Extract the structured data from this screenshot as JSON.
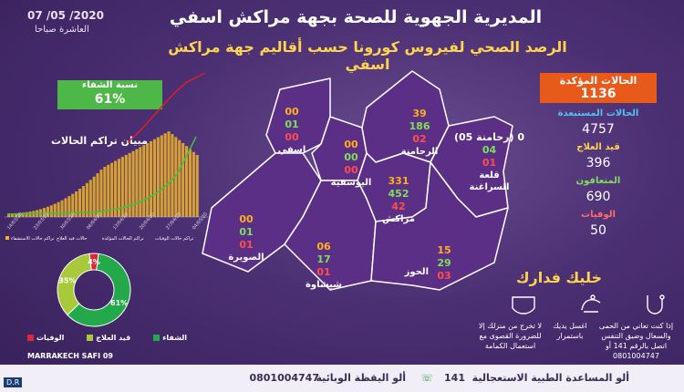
{
  "header": {
    "date": "07 /05 /2020",
    "time": "العاشرة صباحا",
    "title": "المديرية الجهوية للصحة بجهة مراكش اسفي",
    "subtitle": "الرصد الصحي لفيروس كورونا حسب أقاليم جهة مراكش اسفي"
  },
  "recovery": {
    "label": "نسبة الشفاء",
    "value": "61%"
  },
  "cumulative_chart": {
    "title": "مبيان تراكم الحالات",
    "x_labels": [
      "14/03/20",
      "23/03/20",
      "30/03/20",
      "06/04/20",
      "13/04/20",
      "20/04/20",
      "27/04/20",
      "04/05/20"
    ],
    "legend": [
      "تراكم حالات الاستشفاء",
      "حالات قيد العلاج",
      "تراكم الحالات المؤكدة",
      "تراكم حالات الوفيات"
    ],
    "colors": {
      "bars": "#f0b428",
      "line_red": "#e02020",
      "line_green": "#3ac43a"
    }
  },
  "stats": {
    "confirmed_label": "الحالات المؤكدة",
    "confirmed_value": "1136",
    "excluded_label": "الحالات المستبعدة",
    "excluded_value": "4757",
    "treatment_label": "قيد العلاج",
    "treatment_value": "396",
    "recovered_label": "المتعافون",
    "recovered_value": "690",
    "deaths_label": "الوفيات",
    "deaths_value": "50"
  },
  "regions": {
    "asfi": {
      "name": "اسفي",
      "a": "00",
      "b": "01",
      "c": "00"
    },
    "youssoufia": {
      "name": "اليوسفية",
      "a": "00",
      "b": "00",
      "c": "00"
    },
    "rhamna": {
      "name": "الرحامنة",
      "a": "39",
      "b": "186",
      "c": "02"
    },
    "kelaa": {
      "name": "قلعة السراغنة",
      "a": "(05 رحامنة) 0",
      "b": "04",
      "c": "01"
    },
    "marrakech": {
      "name": "مراكش",
      "a": "331",
      "b": "452",
      "c": "42"
    },
    "essaouira": {
      "name": "الصويرة",
      "a": "00",
      "b": "01",
      "c": "01"
    },
    "chichaoua": {
      "name": "شيشاوة",
      "a": "06",
      "b": "17",
      "c": "01"
    },
    "haouz": {
      "name": "الحوز",
      "a": "15",
      "b": "29",
      "c": "03"
    }
  },
  "donut": {
    "slices": [
      {
        "name": "الشفاء",
        "value": 61,
        "label": "61%",
        "color": "#23a84a"
      },
      {
        "name": "قيد العلاج",
        "value": 35,
        "label": "35%",
        "color": "#a7c93a"
      },
      {
        "name": "الوفيات",
        "value": 4,
        "label": "4%",
        "color": "#d8283a"
      }
    ],
    "caption": "MARRAKECH SAFI 09"
  },
  "advice": {
    "title": "خليك فدارك",
    "items": [
      "إذا كنت تعاني من الحمى والسعال وضيق التنفس اتصل بالرقم 141 أو 0801004747",
      "اغسل يديك باستمرار",
      "لا تخرج من منزلك إلا للضرورة القصوى مع استعمال الكمامة"
    ]
  },
  "footer": {
    "emergency": "ألو المساعدة الطبية الاستعجالية",
    "emergency_number": "141",
    "vigilance": "ألو اليقظة الوبائية",
    "vigilance_number": "0801004747",
    "credit": "D.R"
  }
}
